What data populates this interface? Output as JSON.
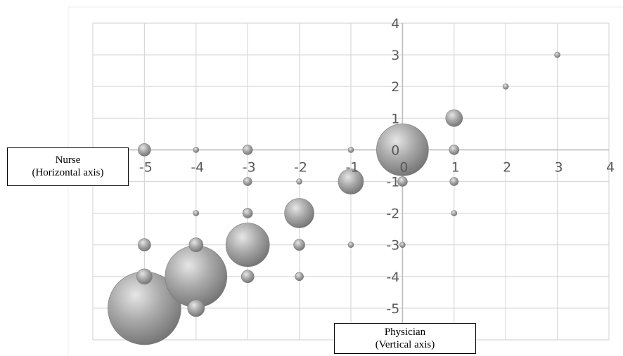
{
  "chart_data": {
    "type": "scatter",
    "title": "",
    "xlabel": "Nurse\n(Horizontal axis)",
    "ylabel": "Physician\n(Vertical axis)",
    "xlim": [
      -6,
      4
    ],
    "ylim": [
      -6,
      4
    ],
    "x_ticks": [
      "-5",
      "-4",
      "-3",
      "-2",
      "-1",
      "0",
      "1",
      "2",
      "3",
      "4"
    ],
    "y_ticks": [
      "4",
      "3",
      "2",
      "1",
      "0",
      "-1",
      "-2",
      "-3",
      "-4",
      "-5"
    ],
    "grid": true,
    "bubble_color": "#a0a0a0",
    "points": [
      {
        "x": -5,
        "y": -5,
        "size": 52
      },
      {
        "x": -4,
        "y": -4,
        "size": 44
      },
      {
        "x": 0,
        "y": 0,
        "size": 37
      },
      {
        "x": -3,
        "y": -3,
        "size": 31
      },
      {
        "x": -2,
        "y": -2,
        "size": 21
      },
      {
        "x": -1,
        "y": -1,
        "size": 18
      },
      {
        "x": -4,
        "y": -5,
        "size": 12
      },
      {
        "x": 1,
        "y": 1,
        "size": 12
      },
      {
        "x": -5,
        "y": -4,
        "size": 11
      },
      {
        "x": -5,
        "y": 0,
        "size": 9
      },
      {
        "x": -5,
        "y": -3,
        "size": 9
      },
      {
        "x": -4,
        "y": -3,
        "size": 10
      },
      {
        "x": -3,
        "y": -4,
        "size": 9
      },
      {
        "x": 0,
        "y": -1,
        "size": 7
      },
      {
        "x": -3,
        "y": 0,
        "size": 7
      },
      {
        "x": -3,
        "y": -2,
        "size": 7
      },
      {
        "x": -2,
        "y": -3,
        "size": 8
      },
      {
        "x": 1,
        "y": 0,
        "size": 7
      },
      {
        "x": -3,
        "y": -1,
        "size": 6
      },
      {
        "x": -2,
        "y": -4,
        "size": 6
      },
      {
        "x": 1,
        "y": -1,
        "size": 6
      },
      {
        "x": -4,
        "y": 0,
        "size": 4
      },
      {
        "x": -4,
        "y": -2,
        "size": 4
      },
      {
        "x": -2,
        "y": -1,
        "size": 4
      },
      {
        "x": -1,
        "y": 0,
        "size": 4
      },
      {
        "x": -1,
        "y": -3,
        "size": 4
      },
      {
        "x": 0,
        "y": -3,
        "size": 4
      },
      {
        "x": 1,
        "y": -2,
        "size": 4
      },
      {
        "x": 2,
        "y": 2,
        "size": 4
      },
      {
        "x": 3,
        "y": 3,
        "size": 4
      }
    ]
  },
  "labels": {
    "nurse_line1": "Nurse",
    "nurse_line2": "(Horizontal axis)",
    "physician_line1": "Physician",
    "physician_line2": "(Vertical axis)"
  }
}
